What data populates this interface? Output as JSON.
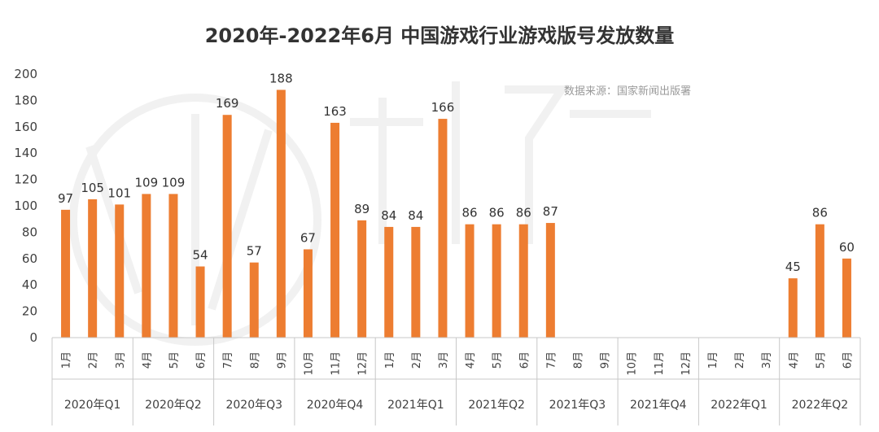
{
  "chart_data": {
    "type": "bar",
    "title": "2020年-2022年6月 中国游戏行业游戏版号发放数量",
    "source_note": "数据来源：国家新闻出版署",
    "bar_color": "#ED7D31",
    "ylim": [
      0,
      200
    ],
    "yticks": [
      "0",
      "20",
      "40",
      "60",
      "80",
      "100",
      "120",
      "140",
      "160",
      "180",
      "200"
    ],
    "xlabel": "",
    "ylabel": "",
    "grid": false,
    "categories": [
      "1月",
      "2月",
      "3月",
      "4月",
      "5月",
      "6月",
      "7月",
      "8月",
      "9月",
      "10月",
      "11月",
      "12月",
      "1月",
      "2月",
      "3月",
      "4月",
      "5月",
      "6月",
      "7月",
      "8月",
      "9月",
      "10月",
      "11月",
      "12月",
      "1月",
      "2月",
      "3月",
      "4月",
      "5月",
      "6月"
    ],
    "values": [
      97,
      105,
      101,
      109,
      109,
      54,
      169,
      57,
      188,
      67,
      163,
      89,
      84,
      84,
      166,
      86,
      86,
      86,
      87,
      null,
      null,
      null,
      null,
      null,
      null,
      null,
      null,
      45,
      86,
      60
    ],
    "groups": [
      "2020年Q1",
      "2020年Q2",
      "2020年Q3",
      "2020年Q4",
      "2021年Q1",
      "2021年Q2",
      "2021年Q3",
      "2021年Q4",
      "2022年Q1",
      "2022年Q2"
    ]
  }
}
